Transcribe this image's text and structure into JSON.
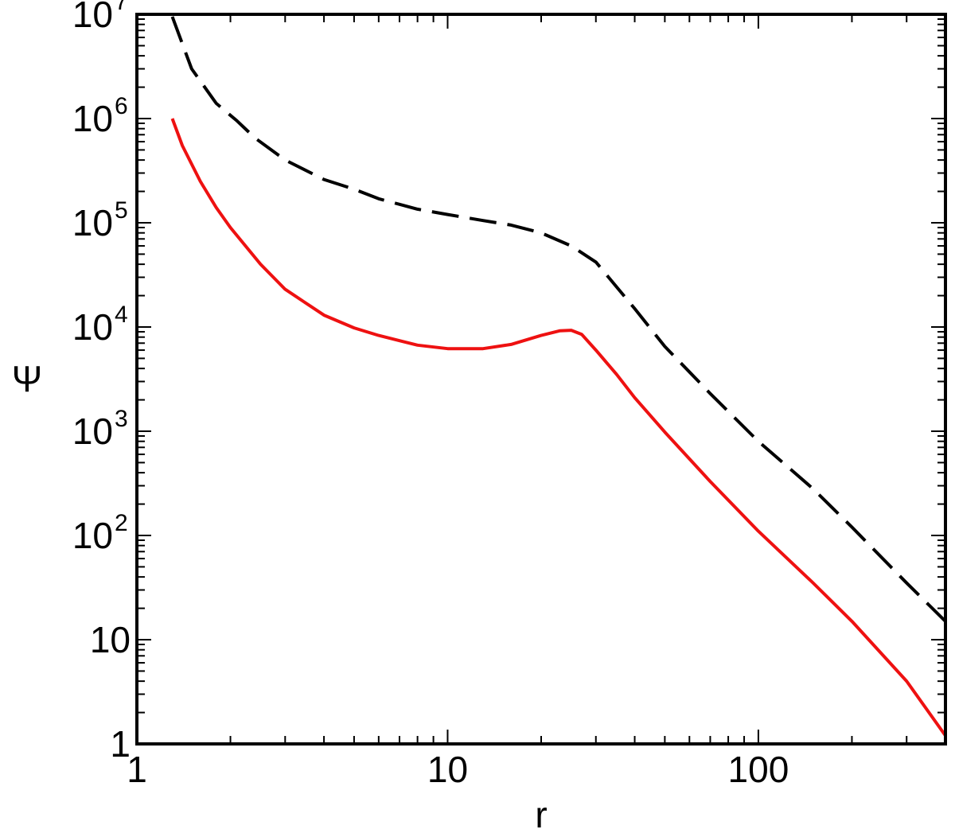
{
  "chart_data": {
    "type": "line",
    "title": "",
    "xlabel": "r",
    "ylabel": "Ψ",
    "xscale": "log",
    "yscale": "log",
    "xlim": [
      1,
      400
    ],
    "ylim": [
      1,
      10000000
    ],
    "grid": false,
    "legend": "none",
    "x_tick_labels": [
      {
        "value": 1,
        "base": "1",
        "exp": ""
      },
      {
        "value": 10,
        "base": "10",
        "exp": ""
      },
      {
        "value": 100,
        "base": "100",
        "exp": ""
      }
    ],
    "y_tick_labels": [
      {
        "value": 1,
        "base": "1",
        "exp": ""
      },
      {
        "value": 10,
        "base": "10",
        "exp": ""
      },
      {
        "value": 100,
        "base": "10",
        "exp": "2"
      },
      {
        "value": 1000,
        "base": "10",
        "exp": "3"
      },
      {
        "value": 10000,
        "base": "10",
        "exp": "4"
      },
      {
        "value": 100000,
        "base": "10",
        "exp": "5"
      },
      {
        "value": 1000000,
        "base": "10",
        "exp": "6"
      },
      {
        "value": 10000000,
        "base": "10",
        "exp": "7"
      }
    ],
    "series": [
      {
        "color": "#000000",
        "style": "dashed",
        "x": [
          1.3,
          1.5,
          1.8,
          2.1,
          2.4,
          3,
          4,
          5,
          6,
          8,
          10,
          13,
          16,
          20,
          25,
          30,
          40,
          50,
          70,
          100,
          150,
          200,
          300,
          400
        ],
        "y": [
          9500000,
          3000000,
          1400000,
          950000,
          650000,
          400000,
          260000,
          210000,
          170000,
          135000,
          120000,
          105000,
          95000,
          80000,
          60000,
          42000,
          15000,
          6500,
          2300,
          800,
          280,
          120,
          35,
          15
        ]
      },
      {
        "color": "#ee1111",
        "style": "solid",
        "x": [
          1.3,
          1.4,
          1.6,
          1.8,
          2,
          2.5,
          3,
          4,
          5,
          6,
          8,
          10,
          13,
          16,
          20,
          23,
          25,
          27,
          30,
          35,
          40,
          50,
          70,
          100,
          150,
          200,
          300,
          400
        ],
        "y": [
          1000000,
          550000,
          250000,
          140000,
          90000,
          40000,
          23000,
          13000,
          9800,
          8300,
          6700,
          6200,
          6200,
          6800,
          8300,
          9200,
          9300,
          8500,
          6000,
          3500,
          2100,
          980,
          330,
          110,
          35,
          15,
          4,
          1.2
        ]
      }
    ]
  }
}
